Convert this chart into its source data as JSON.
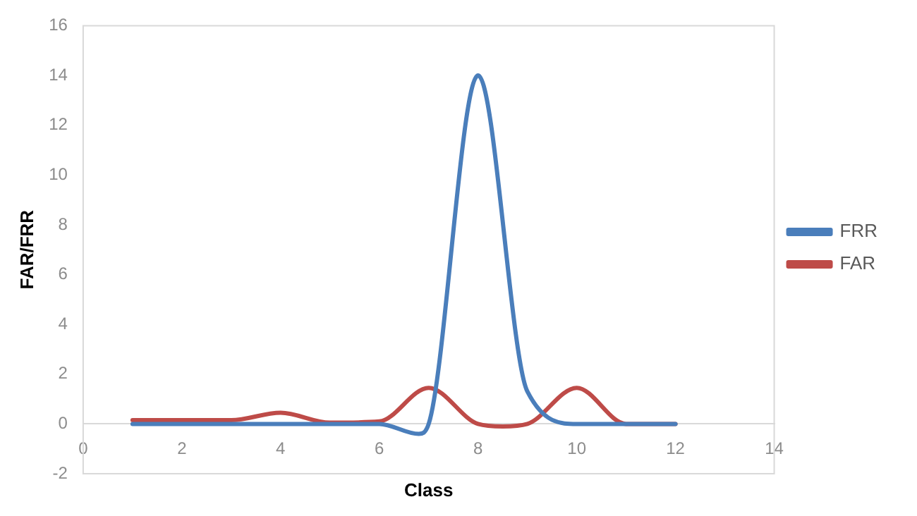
{
  "chart_data": {
    "type": "line",
    "xlabel": "Class",
    "ylabel": "FAR/FRR",
    "xlim": [
      0,
      14
    ],
    "xticks": [
      0,
      2,
      4,
      6,
      8,
      10,
      12,
      14
    ],
    "ylim": [
      -2,
      16
    ],
    "yticks": [
      -2,
      0,
      2,
      4,
      6,
      8,
      10,
      12,
      14,
      16
    ],
    "legend": "right",
    "grid": false,
    "marker": "none",
    "line_style": "solid",
    "series": [
      {
        "name": "FRR",
        "color": "#4a7ebb",
        "x": [
          1,
          2,
          3,
          4,
          5,
          6,
          6.8,
          7,
          8,
          9,
          10,
          11,
          12
        ],
        "values": [
          0,
          0,
          0,
          0,
          0,
          0,
          -0.4,
          0,
          14,
          1.3,
          0,
          0,
          0
        ]
      },
      {
        "name": "FAR",
        "color": "#be4b48",
        "x": [
          1,
          2,
          3,
          4,
          5,
          6,
          7,
          8,
          8.5,
          9,
          10,
          11,
          12
        ],
        "values": [
          0.15,
          0.15,
          0.15,
          0.45,
          0.05,
          0.1,
          1.45,
          0,
          -0.1,
          0,
          1.45,
          0,
          0
        ]
      }
    ]
  }
}
